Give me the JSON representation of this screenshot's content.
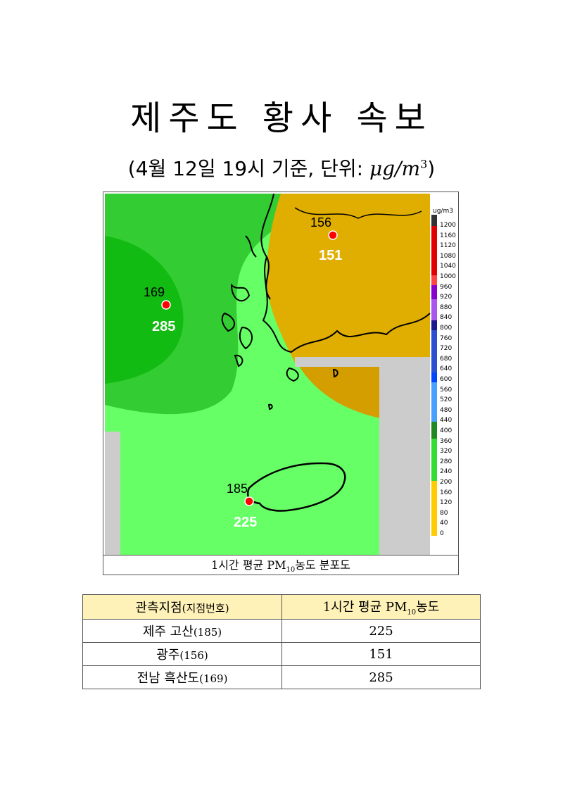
{
  "title": "제주도 황사 속보",
  "subtitle_prefix": "(4월 12일 19시 기준, 단위: ",
  "subtitle_unit_base": "μg/m",
  "subtitle_unit_exp": "3",
  "subtitle_suffix": ")",
  "map": {
    "legend_unit": "ug/m3",
    "legend_levels": [
      "1200",
      "1160",
      "1120",
      "1080",
      "1040",
      "1000",
      "960",
      "920",
      "880",
      "840",
      "800",
      "760",
      "720",
      "680",
      "640",
      "600",
      "560",
      "520",
      "480",
      "440",
      "400",
      "360",
      "320",
      "280",
      "240",
      "200",
      "160",
      "120",
      "80",
      "40",
      "0"
    ],
    "stations": [
      {
        "id": "156",
        "value": "151"
      },
      {
        "id": "169",
        "value": "285"
      },
      {
        "id": "185",
        "value": "225"
      }
    ],
    "colors": {
      "orange": "#e0ae00",
      "green_light": "#66ff66",
      "green_mid": "#33cc33",
      "green_dark": "#11bb11",
      "gray": "#cccccc",
      "station": "#ff0000"
    }
  },
  "caption_prefix": "1시간 평균 PM",
  "caption_sub": "10",
  "caption_suffix": "농도 분포도",
  "table": {
    "header_col1_main": "관측지점",
    "header_col1_small": "(지점번호)",
    "header_col2_prefix": "1시간 평균 PM",
    "header_col2_sub": "10",
    "header_col2_suffix": "농도",
    "rows": [
      {
        "name": "제주 고산",
        "code": "(185)",
        "value": "225"
      },
      {
        "name": "광주",
        "code": "(156)",
        "value": "151"
      },
      {
        "name": "전남 흑산도",
        "code": "(169)",
        "value": "285"
      }
    ]
  }
}
